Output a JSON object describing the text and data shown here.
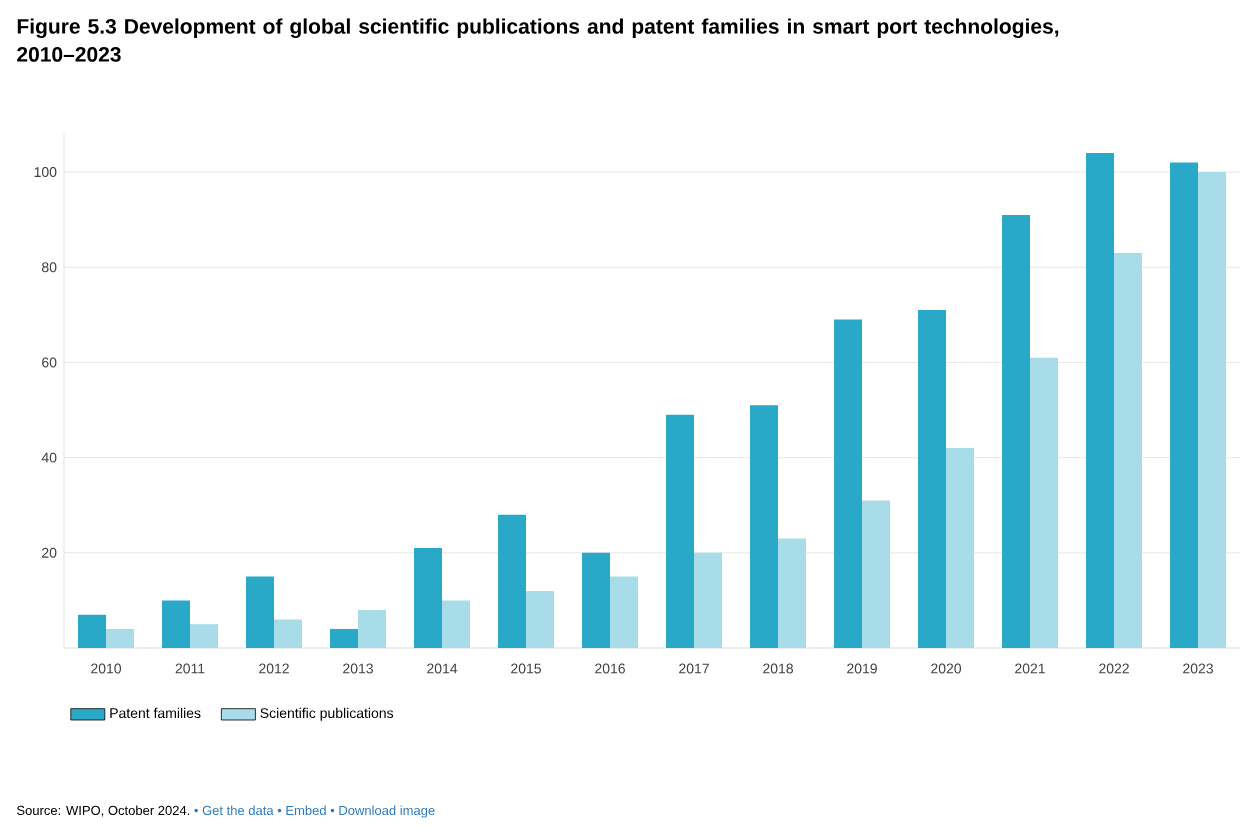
{
  "chart_data": {
    "type": "bar",
    "title": "Figure 5.3 Development of global scientific publications and patent families in smart port technologies, 2010–2023",
    "categories": [
      "2010",
      "2011",
      "2012",
      "2013",
      "2014",
      "2015",
      "2016",
      "2017",
      "2018",
      "2019",
      "2020",
      "2021",
      "2022",
      "2023"
    ],
    "series": [
      {
        "name": "Patent families",
        "color": "#2aa8c8",
        "values": [
          7,
          10,
          15,
          4,
          21,
          28,
          20,
          49,
          51,
          69,
          71,
          91,
          104,
          102
        ]
      },
      {
        "name": "Scientific publications",
        "color": "#a8dce8",
        "values": [
          4,
          5,
          6,
          8,
          10,
          12,
          15,
          20,
          23,
          31,
          42,
          61,
          83,
          100
        ]
      }
    ],
    "ylim": [
      0,
      108
    ],
    "yticks": [
      {
        "value": 0,
        "label": null
      },
      20,
      40,
      60,
      80,
      100
    ],
    "grid": "y",
    "legend": "bottom",
    "annotations": [
      "Source: WIPO, October 2024.",
      "• Get the data",
      "• Embed",
      "• Download image"
    ]
  }
}
